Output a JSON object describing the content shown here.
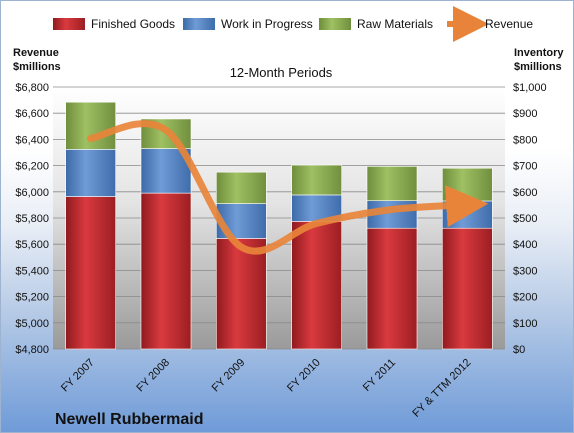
{
  "chart_data": {
    "type": "bar",
    "subtitle": "12-Month Periods",
    "company": "Newell Rubbermaid",
    "left_axis": {
      "title_line1": "Revenue",
      "title_line2": "$millions",
      "range": [
        4800,
        6800
      ],
      "ticks": [
        "$4,800",
        "$5,000",
        "$5,200",
        "$5,400",
        "$5,600",
        "$5,800",
        "$6,000",
        "$6,200",
        "$6,400",
        "$6,600",
        "$6,800"
      ]
    },
    "right_axis": {
      "title_line1": "Inventory",
      "title_line2": "$millions",
      "range": [
        0,
        1000
      ],
      "ticks": [
        "$0",
        "$100",
        "$200",
        "$300",
        "$400",
        "$500",
        "$600",
        "$700",
        "$800",
        "$900",
        "$1,000"
      ]
    },
    "categories": [
      "FY 2007",
      "FY 2008",
      "FY 2009",
      "FY 2010",
      "FY 2011",
      "FY & TTM 2012"
    ],
    "series": [
      {
        "name": "Finished Goods",
        "axis": "right",
        "color": "#c0282d",
        "values": [
          582,
          595,
          422,
          487,
          461,
          461
        ]
      },
      {
        "name": "Work in Progress",
        "axis": "right",
        "color": "#4e7dbf",
        "values": [
          180,
          170,
          133,
          101,
          105,
          104
        ]
      },
      {
        "name": "Raw Materials",
        "axis": "right",
        "color": "#86a94e",
        "values": [
          180,
          113,
          120,
          114,
          131,
          125
        ]
      },
      {
        "name": "Revenue",
        "axis": "left",
        "type": "line",
        "color": "#e8843a",
        "values": [
          6407,
          6471,
          5578,
          5759,
          5865,
          5900
        ]
      }
    ]
  }
}
